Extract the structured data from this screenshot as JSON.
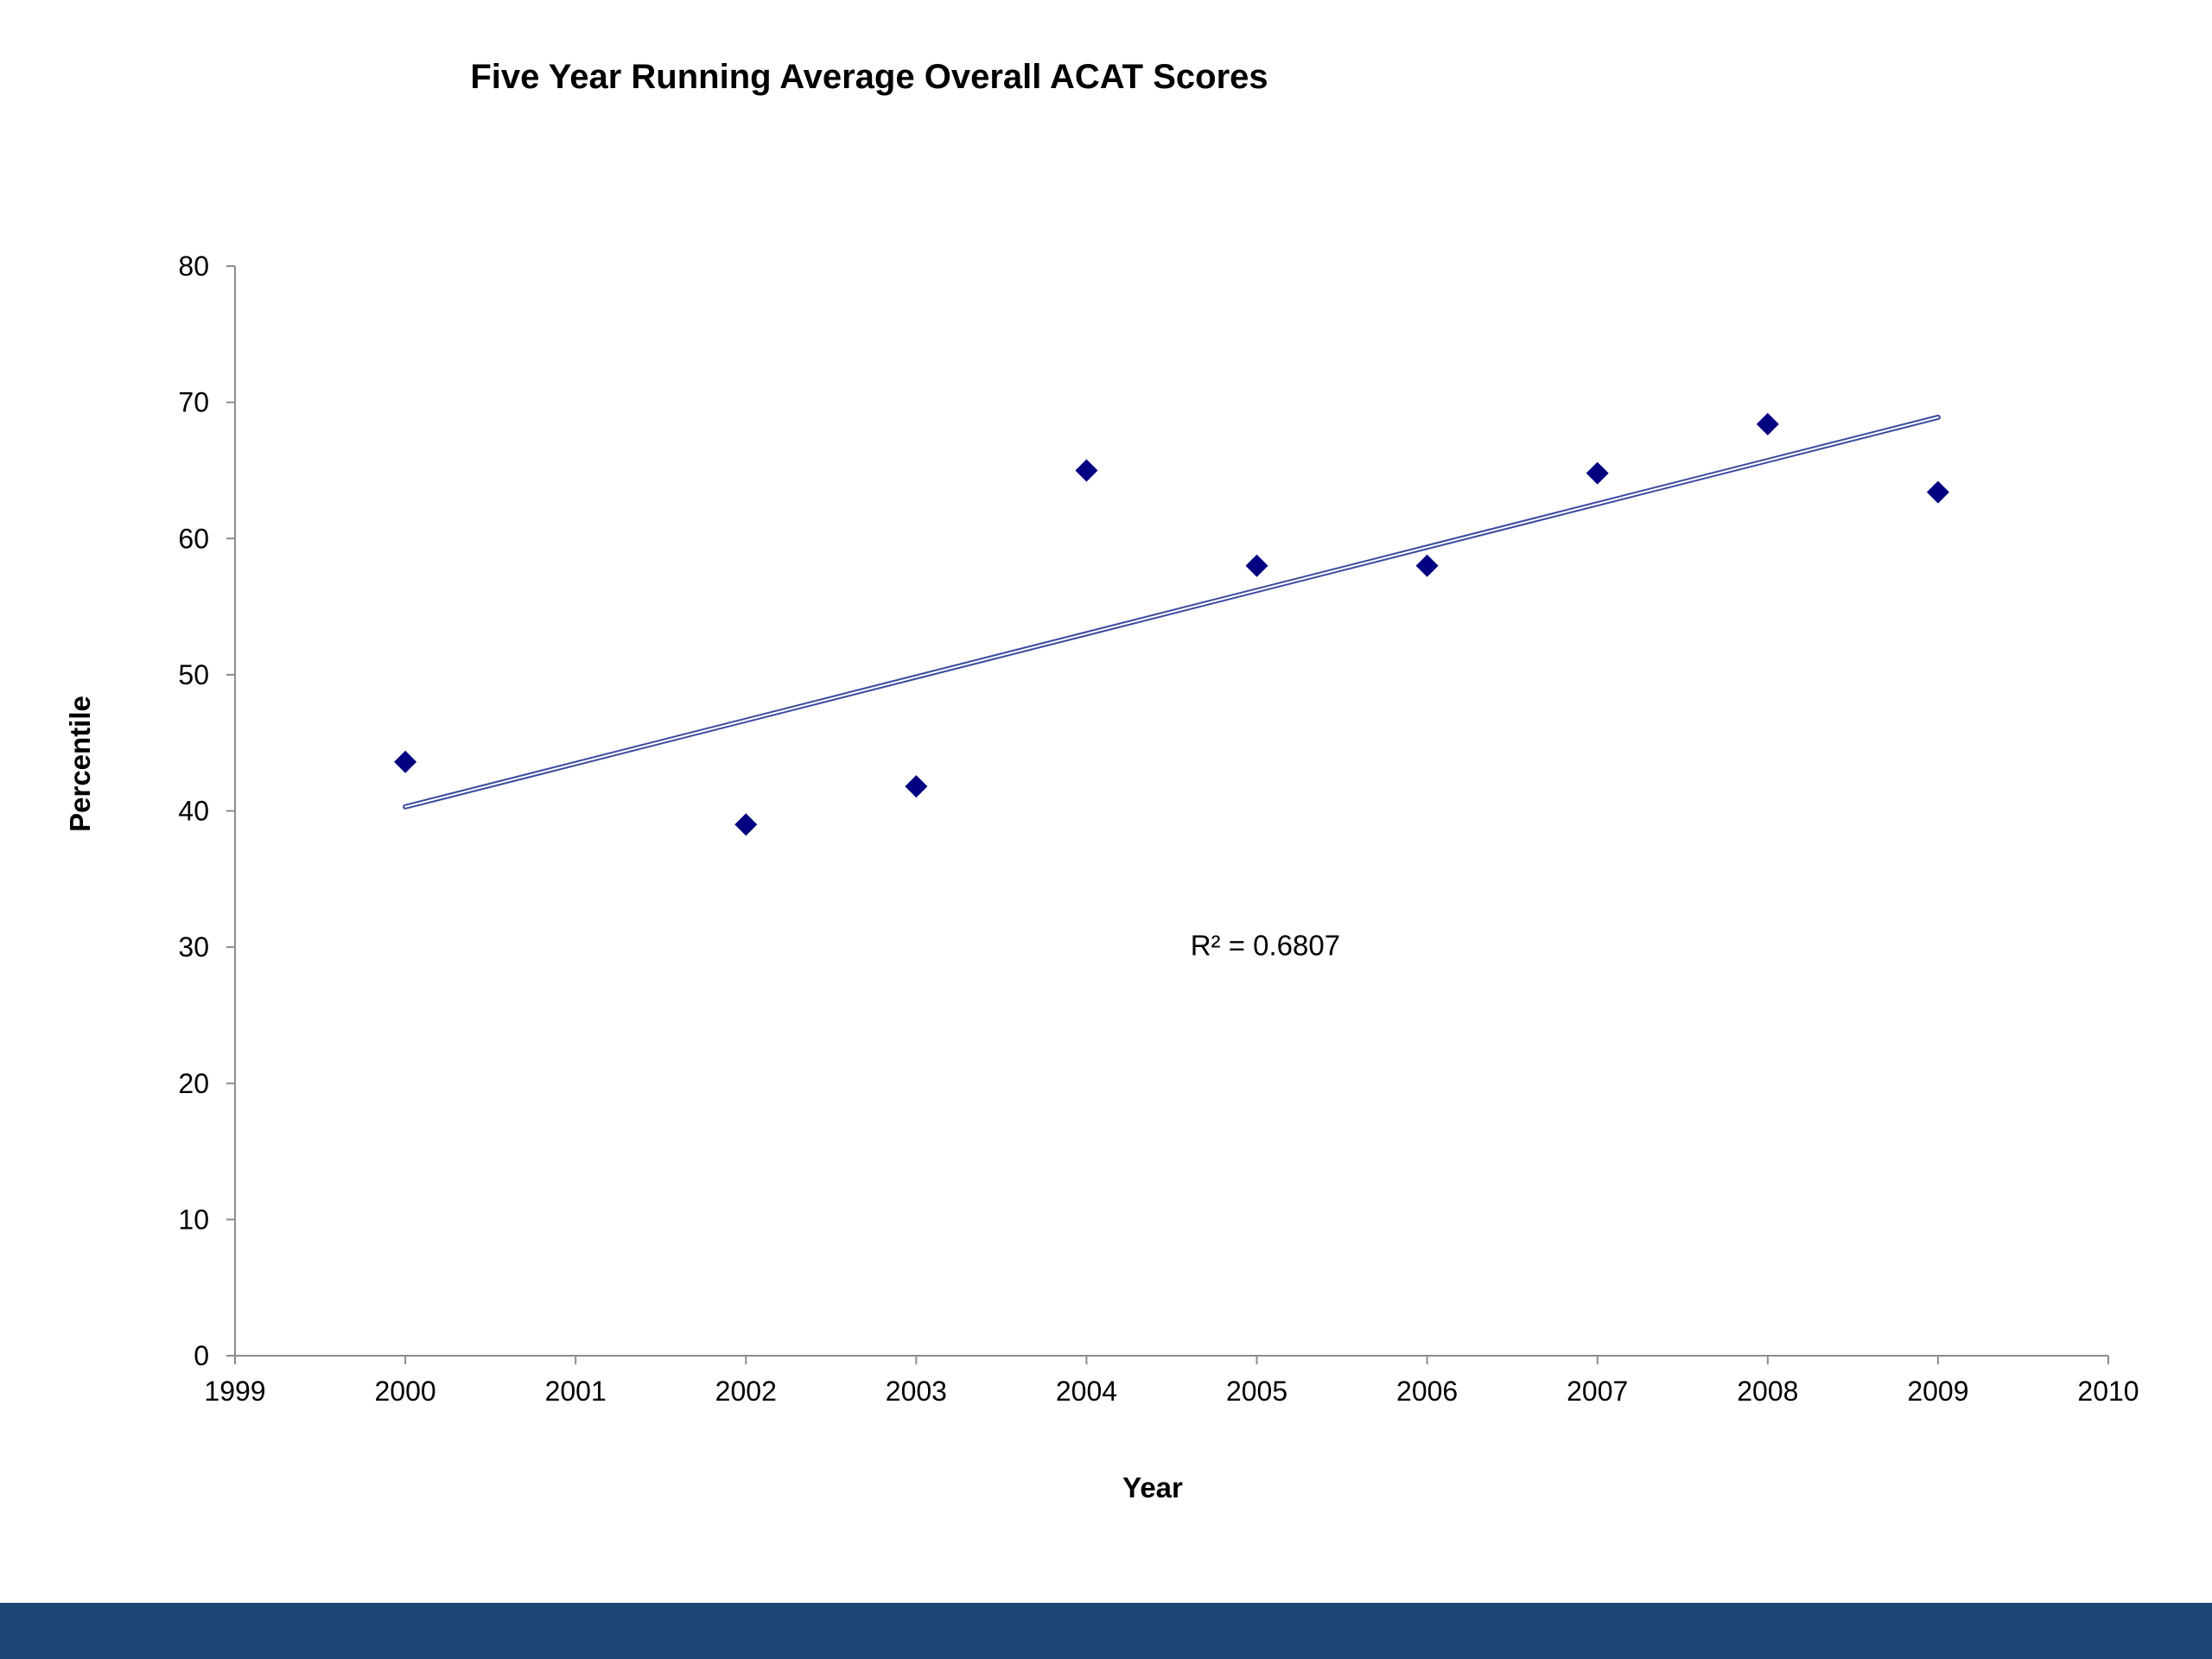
{
  "chart_data": {
    "type": "scatter",
    "title": "Five Year Running Average Overall ACAT Scores",
    "xlabel": "Year",
    "ylabel": "Percentile",
    "xlim": [
      1999,
      2010
    ],
    "ylim": [
      0,
      80
    ],
    "x_ticks": [
      "1999",
      "2000",
      "2001",
      "2002",
      "2003",
      "2004",
      "2005",
      "2006",
      "2007",
      "2008",
      "2009",
      "2010"
    ],
    "y_ticks": [
      "0",
      "10",
      "20",
      "30",
      "40",
      "50",
      "60",
      "70",
      "80"
    ],
    "grid": false,
    "legend": "none",
    "series": [
      {
        "marker": "diamond",
        "color": "#000080",
        "x": [
          2000,
          2002,
          2003,
          2004,
          2005,
          2006,
          2007,
          2008,
          2009
        ],
        "y": [
          43.6,
          39.0,
          41.8,
          65.0,
          58.0,
          58.0,
          64.8,
          68.4,
          63.4
        ]
      }
    ],
    "trendline": {
      "type": "linear",
      "x": [
        2000,
        2009
      ],
      "y": [
        40.3,
        68.9
      ],
      "color": "#3a4aa0"
    },
    "annotations": [
      {
        "text": "R² = 0.6807",
        "x": 2005.05,
        "y": 29.4
      }
    ]
  },
  "footer": {
    "color": "#1e4677"
  }
}
